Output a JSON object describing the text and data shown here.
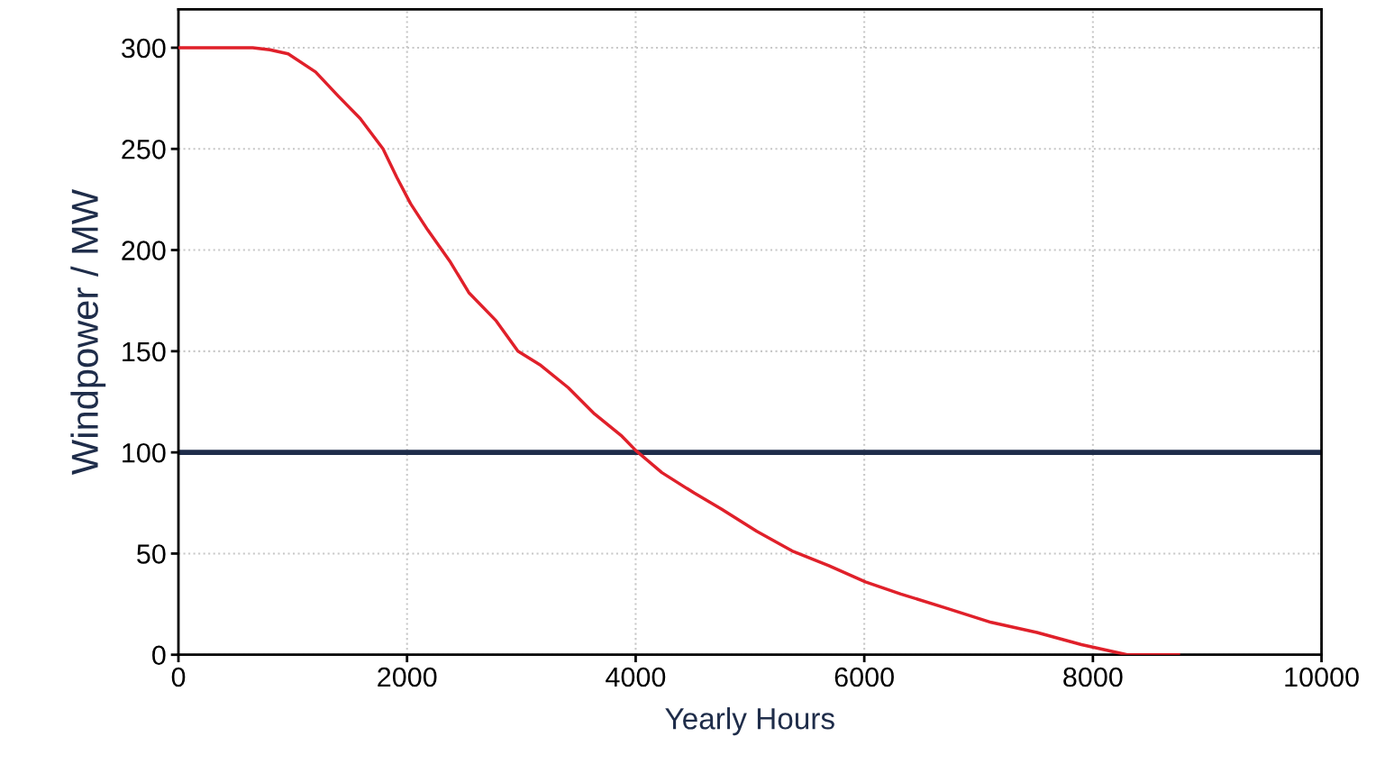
{
  "chart_data": {
    "type": "line",
    "xlabel": "Yearly Hours",
    "ylabel": "Windpower / MW",
    "x": [
      0,
      650,
      800,
      960,
      1200,
      1400,
      1590,
      1790,
      1910,
      2030,
      2180,
      2380,
      2540,
      2780,
      2970,
      3170,
      3410,
      3640,
      3880,
      4000,
      4230,
      4510,
      4750,
      5060,
      5380,
      5690,
      6010,
      6320,
      6720,
      7110,
      7510,
      7900,
      8220,
      8300,
      8750
    ],
    "series": [
      {
        "color": "#e0202a",
        "values": [
          300,
          300,
          299,
          297,
          288,
          276,
          265,
          250,
          236,
          223,
          210,
          194,
          179,
          165,
          150,
          143,
          132,
          119,
          108,
          101,
          90,
          80,
          72,
          61,
          51,
          44,
          36,
          30,
          23,
          16,
          11,
          5,
          1,
          0,
          0
        ]
      }
    ],
    "xlim": [
      0,
      10000
    ],
    "xticks": [
      0,
      2000,
      4000,
      6000,
      8000,
      10000
    ],
    "ylim": [
      0,
      319
    ],
    "yticks": [
      0,
      50,
      100,
      150,
      200,
      250,
      300
    ],
    "ref_lines": [
      {
        "axis": "y",
        "value": 100,
        "color": "#1f2d4a"
      }
    ],
    "grid": true,
    "legend": false,
    "marker": "none",
    "line_style": "solid"
  }
}
